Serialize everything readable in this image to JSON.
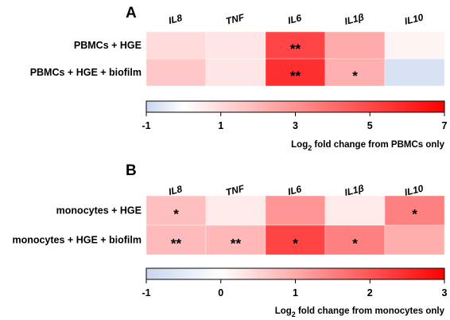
{
  "chart_data": [
    {
      "type": "heatmap",
      "panel_label": "A",
      "columns": [
        "IL8",
        "TNF",
        "IL6",
        "IL1β",
        "IL10"
      ],
      "rows": [
        "PBMCs + HGE",
        "PBMCs + HGE + biofilm"
      ],
      "values": [
        [
          1.0,
          0.7,
          5.1,
          2.3,
          0.3
        ],
        [
          1.5,
          0.7,
          5.7,
          2.2,
          -0.7
        ]
      ],
      "significance": [
        [
          "",
          "",
          "**",
          "",
          ""
        ],
        [
          "",
          "",
          "**",
          "*",
          ""
        ]
      ],
      "colorbar": {
        "min": -1,
        "max": 7,
        "ticks": [
          -1,
          1,
          3,
          5,
          7
        ],
        "low_color": "#c8d6ee",
        "mid_color": "#ffffff",
        "high_color": "#ff0000",
        "mid_value": 0,
        "label_prefix": "Log",
        "label_subscript": "2",
        "label_suffix": " fold change from PBMCs only"
      }
    },
    {
      "type": "heatmap",
      "panel_label": "B",
      "columns": [
        "IL8",
        "TNF",
        "IL6",
        "IL1β",
        "IL10"
      ],
      "rows": [
        "monocytes + HGE",
        "monocytes + HGE + biofilm"
      ],
      "values": [
        [
          0.75,
          0.25,
          1.25,
          0.25,
          1.5
        ],
        [
          0.8,
          0.85,
          2.2,
          1.5,
          0.95
        ]
      ],
      "significance": [
        [
          "*",
          "",
          "",
          "",
          "*"
        ],
        [
          "**",
          "**",
          "*",
          "*",
          ""
        ]
      ],
      "colorbar": {
        "min": -1,
        "max": 3,
        "ticks": [
          -1,
          0,
          1,
          2,
          3
        ],
        "low_color": "#c8d6ee",
        "mid_color": "#ffffff",
        "high_color": "#ff0000",
        "mid_value": 0,
        "label_prefix": "Log",
        "label_subscript": "2",
        "label_suffix": " fold change from monocytes only"
      }
    }
  ]
}
